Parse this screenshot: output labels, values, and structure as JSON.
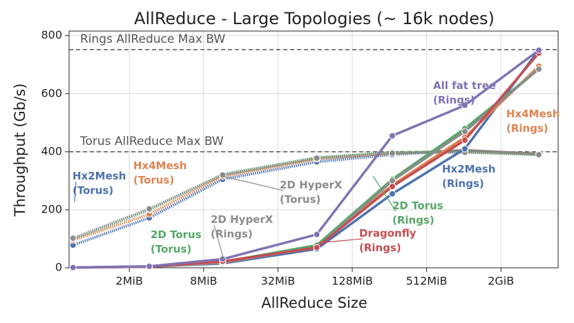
{
  "chart_data": {
    "type": "line",
    "title": "AllReduce - Large Topologies (~ 16k nodes)",
    "x_label": "AllReduce Size",
    "y_label": "Throughput (Gb/s)",
    "x_scale": "log",
    "grid": true,
    "x": [
      0.7,
      2.9,
      11.4,
      66,
      270,
      1045,
      4150
    ],
    "xlim": [
      0.65,
      5950
    ],
    "xticks": [
      {
        "value": 2,
        "label": "2MiB"
      },
      {
        "value": 8,
        "label": "8MiB"
      },
      {
        "value": 32,
        "label": "32MiB"
      },
      {
        "value": 128,
        "label": "128MiB"
      },
      {
        "value": 512,
        "label": "512MiB"
      },
      {
        "value": 2048,
        "label": "2GiB"
      }
    ],
    "ylim": [
      0,
      816
    ],
    "yticks": [
      0,
      200,
      400,
      600,
      800
    ],
    "hlines": [
      {
        "value": 752,
        "label": "Rings AllReduce Max BW"
      },
      {
        "value": 400,
        "label": "Torus AllReduce Max BW"
      }
    ],
    "series": [
      {
        "name": "Hx2Mesh (Torus)",
        "color": "#4c72b0",
        "style": "dotted",
        "values": [
          78,
          172,
          305,
          365,
          390,
          405,
          392
        ]
      },
      {
        "name": "Hx4Mesh (Torus)",
        "color": "#dd8452",
        "style": "dotted",
        "values": [
          95,
          185,
          315,
          375,
          395,
          405,
          392
        ]
      },
      {
        "name": "2D Torus (Torus)",
        "color": "#55a868",
        "style": "dotted",
        "values": [
          100,
          200,
          322,
          380,
          398,
          400,
          390
        ]
      },
      {
        "name": "2D HyperX (Torus)",
        "color": "#8c8c8c",
        "style": "dotted",
        "values": [
          102,
          203,
          320,
          378,
          395,
          398,
          390
        ]
      },
      {
        "name": "Hx2Mesh (Rings)",
        "color": "#4c72b0",
        "style": "solid",
        "values": [
          1,
          4,
          15,
          65,
          255,
          410,
          750
        ]
      },
      {
        "name": "Hx4Mesh (Rings)",
        "color": "#dd8452",
        "style": "solid",
        "values": [
          1,
          4,
          18,
          72,
          285,
          450,
          695
        ]
      },
      {
        "name": "2D Torus (Rings)",
        "color": "#55a868",
        "style": "solid",
        "values": [
          1,
          5,
          20,
          78,
          305,
          480,
          685
        ]
      },
      {
        "name": "2D HyperX (Rings)",
        "color": "#8c8c8c",
        "style": "solid",
        "values": [
          1,
          4,
          20,
          70,
          300,
          470,
          685
        ]
      },
      {
        "name": "Dragonfly (Rings)",
        "color": "#c44e52",
        "style": "solid",
        "values": [
          1,
          4,
          22,
          70,
          280,
          440,
          740
        ]
      },
      {
        "name": "All fat tree (Rings)",
        "color": "#8172b3",
        "style": "solid",
        "values": [
          1,
          5,
          30,
          115,
          455,
          560,
          750
        ]
      }
    ]
  }
}
